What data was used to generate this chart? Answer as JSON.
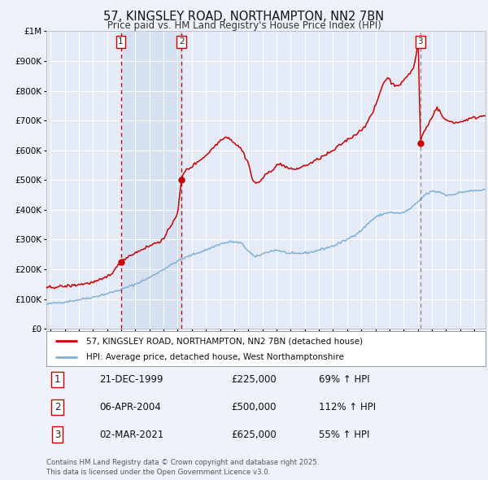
{
  "title": "57, KINGSLEY ROAD, NORTHAMPTON, NN2 7BN",
  "subtitle": "Price paid vs. HM Land Registry's House Price Index (HPI)",
  "background_color": "#eef2fa",
  "plot_bg_color": "#e4eaf6",
  "ymax": 1000000,
  "ymin": 0,
  "yticks": [
    0,
    100000,
    200000,
    300000,
    400000,
    500000,
    600000,
    700000,
    800000,
    900000,
    1000000
  ],
  "sale_dates_num": [
    1999.97,
    2004.27,
    2021.17
  ],
  "sale_prices": [
    225000,
    500000,
    625000
  ],
  "sale_labels": [
    "1",
    "2",
    "3"
  ],
  "red_line_color": "#cc0000",
  "blue_line_color": "#7fb0d8",
  "shade_color": "#d4dff0",
  "legend_label_red": "57, KINGSLEY ROAD, NORTHAMPTON, NN2 7BN (detached house)",
  "legend_label_blue": "HPI: Average price, detached house, West Northamptonshire",
  "table_rows": [
    [
      "1",
      "21-DEC-1999",
      "£225,000",
      "69% ↑ HPI"
    ],
    [
      "2",
      "06-APR-2004",
      "£500,000",
      "112% ↑ HPI"
    ],
    [
      "3",
      "02-MAR-2021",
      "£625,000",
      "55% ↑ HPI"
    ]
  ],
  "footnote": "Contains HM Land Registry data © Crown copyright and database right 2025.\nThis data is licensed under the Open Government Licence v3.0.",
  "xmin": 1994.7,
  "xmax": 2025.8
}
